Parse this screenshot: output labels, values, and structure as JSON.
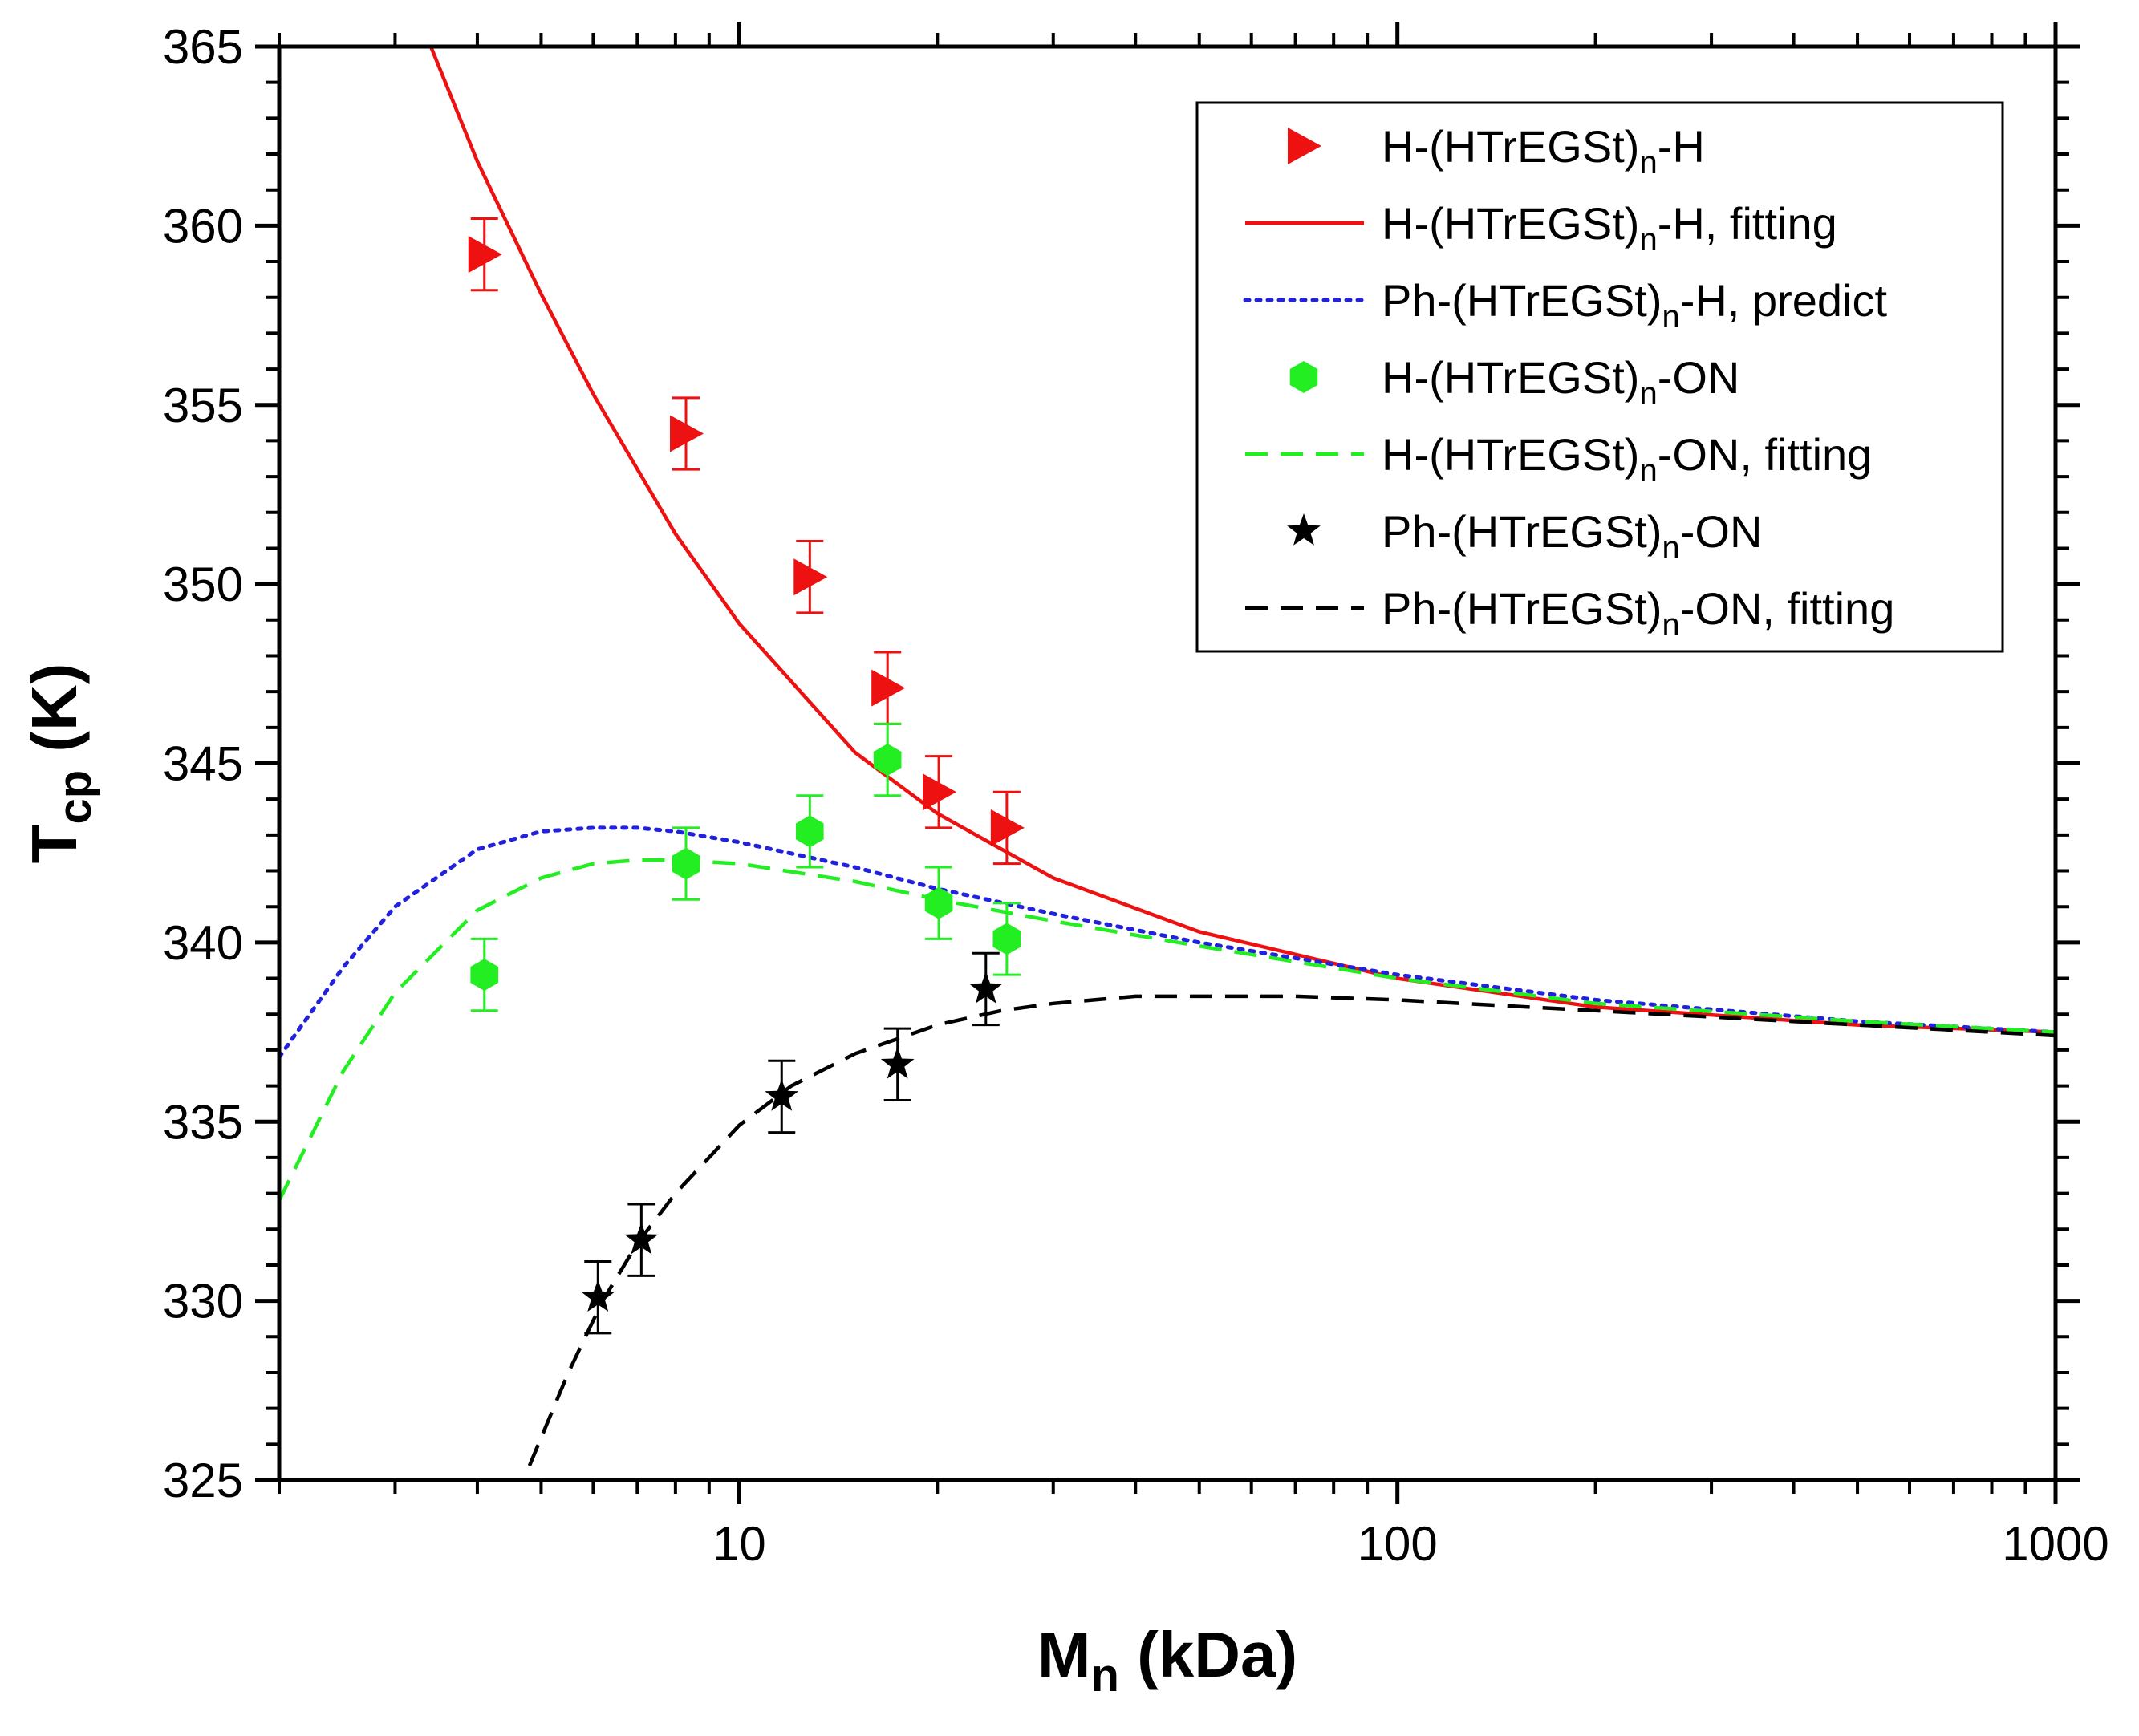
{
  "chart_data": {
    "type": "scatter",
    "xlabel": {
      "main": "M",
      "sub": "n",
      "rest": " (kDa)"
    },
    "ylabel": {
      "main": "T",
      "sub": "cp",
      "rest": " (K)"
    },
    "xscale": "log",
    "xlim": [
      2,
      1000
    ],
    "ylim": [
      325,
      365
    ],
    "xticks": [
      10,
      100,
      1000
    ],
    "xtick_labels": [
      "10",
      "100",
      "1000"
    ],
    "yticks": [
      325,
      330,
      335,
      340,
      345,
      350,
      355,
      360,
      365
    ],
    "ytick_labels": [
      "325",
      "330",
      "335",
      "340",
      "345",
      "350",
      "355",
      "360",
      "365"
    ],
    "legend_position": "top-right",
    "series": [
      {
        "id": "h-h-data",
        "kind": "points",
        "marker": "triangle-right",
        "color": "#ee1111",
        "legend": {
          "pre": "H-(HTrEGSt)",
          "sub": "n",
          "post": "-H"
        },
        "x": [
          4.1,
          8.3,
          12.8,
          16.8,
          20.1,
          25.5
        ],
        "y": [
          359.2,
          354.2,
          350.2,
          347.1,
          344.2,
          343.2
        ],
        "err": [
          1.0,
          1.0,
          1.0,
          1.0,
          1.0,
          1.0
        ]
      },
      {
        "id": "h-h-fit",
        "kind": "line",
        "dash": "solid",
        "color": "#ee1111",
        "legend": {
          "pre": "H-(HTrEGSt)",
          "sub": "n",
          "post": "-H, fitting"
        },
        "x": [
          3.4,
          4,
          5,
          6,
          8,
          10,
          15,
          20,
          30,
          50,
          100,
          200,
          500,
          1000
        ],
        "y": [
          365,
          361.8,
          358.1,
          355.3,
          351.4,
          348.9,
          345.3,
          343.6,
          341.8,
          340.3,
          339.0,
          338.2,
          337.7,
          337.5
        ]
      },
      {
        "id": "ph-h-predict",
        "kind": "line",
        "dash": "dotted",
        "color": "#2222dd",
        "legend": {
          "pre": "Ph-(HTrEGSt)",
          "sub": "n",
          "post": "-H, predict"
        },
        "x": [
          2,
          2.5,
          3,
          4,
          5,
          6,
          7,
          8,
          10,
          15,
          20,
          30,
          50,
          100,
          200,
          500,
          1000
        ],
        "y": [
          336.8,
          339.3,
          341.0,
          342.6,
          343.1,
          343.2,
          343.2,
          343.1,
          342.8,
          342.1,
          341.5,
          340.8,
          340.0,
          339.1,
          338.4,
          337.8,
          337.5
        ]
      },
      {
        "id": "h-on-data",
        "kind": "points",
        "marker": "hexagon",
        "color": "#22ee22",
        "legend": {
          "pre": "H-(HTrEGSt)",
          "sub": "n",
          "post": "-ON"
        },
        "x": [
          4.1,
          8.3,
          12.8,
          16.8,
          20.1,
          25.5
        ],
        "y": [
          339.1,
          342.2,
          343.1,
          345.1,
          341.1,
          340.1
        ],
        "err": [
          1.0,
          1.0,
          1.0,
          1.0,
          1.0,
          1.0
        ]
      },
      {
        "id": "h-on-fit",
        "kind": "line",
        "dash": "dashed",
        "color": "#22ee22",
        "legend": {
          "pre": "H-(HTrEGSt)",
          "sub": "n",
          "post": "-ON, fitting"
        },
        "x": [
          2,
          2.5,
          3,
          4,
          5,
          6,
          7,
          8,
          10,
          15,
          20,
          30,
          50,
          100,
          200,
          500,
          1000
        ],
        "y": [
          332.8,
          336.4,
          338.6,
          340.9,
          341.8,
          342.2,
          342.3,
          342.3,
          342.2,
          341.7,
          341.2,
          340.6,
          339.9,
          339.0,
          338.3,
          337.8,
          337.5
        ]
      },
      {
        "id": "ph-on-data",
        "kind": "points",
        "marker": "star",
        "color": "#000000",
        "legend": {
          "pre": "Ph-(HTrEGSt)",
          "sub": "n",
          "post": "-ON"
        },
        "x": [
          6.1,
          7.1,
          11.6,
          17.4,
          23.7
        ],
        "y": [
          330.1,
          331.7,
          335.7,
          336.6,
          338.7
        ],
        "err": [
          1.0,
          1.0,
          1.0,
          1.0,
          1.0
        ]
      },
      {
        "id": "ph-on-fit",
        "kind": "line",
        "dash": "dashed",
        "color": "#000000",
        "legend": {
          "pre": "Ph-(HTrEGSt)",
          "sub": "n",
          "post": "-ON, fitting"
        },
        "x": [
          4.8,
          5.5,
          6.2,
          7,
          8,
          10,
          12,
          15,
          20,
          25,
          30,
          40,
          50,
          70,
          100,
          200,
          500,
          1000
        ],
        "y": [
          325.4,
          328.0,
          330.0,
          331.6,
          333.0,
          334.9,
          336.0,
          336.9,
          337.7,
          338.1,
          338.3,
          338.5,
          338.5,
          338.5,
          338.4,
          338.1,
          337.7,
          337.4
        ]
      }
    ]
  }
}
